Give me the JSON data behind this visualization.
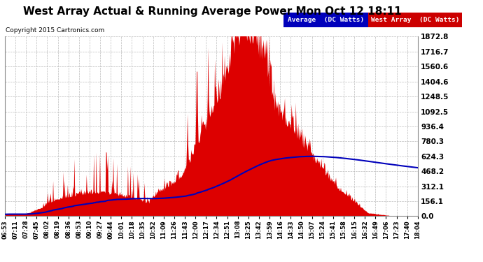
{
  "title": "West Array Actual & Running Average Power Mon Oct 12 18:11",
  "copyright": "Copyright 2015 Cartronics.com",
  "ylabel_values": [
    0.0,
    156.1,
    312.1,
    468.2,
    624.3,
    780.3,
    936.4,
    1092.5,
    1248.5,
    1404.6,
    1560.6,
    1716.7,
    1872.8
  ],
  "ymax": 1872.8,
  "bg_color": "#ffffff",
  "grid_color": "#bbbbbb",
  "fill_color": "#dd0000",
  "avg_line_color": "#0000bb",
  "legend_avg_bg": "#0000bb",
  "legend_west_bg": "#cc0000",
  "legend_avg_text": "Average  (DC Watts)",
  "legend_west_text": "West Array  (DC Watts)",
  "xtick_labels": [
    "06:53",
    "07:11",
    "07:28",
    "07:45",
    "08:02",
    "08:19",
    "08:36",
    "08:53",
    "09:10",
    "09:27",
    "09:44",
    "10:01",
    "10:18",
    "10:35",
    "10:52",
    "11:09",
    "11:26",
    "11:43",
    "12:00",
    "12:17",
    "12:34",
    "12:51",
    "13:08",
    "13:25",
    "13:42",
    "13:59",
    "14:16",
    "14:33",
    "14:50",
    "15:07",
    "15:24",
    "15:41",
    "15:58",
    "16:15",
    "16:32",
    "16:49",
    "17:06",
    "17:23",
    "17:40",
    "18:04"
  ],
  "figsize": [
    6.9,
    3.75
  ],
  "dpi": 100
}
